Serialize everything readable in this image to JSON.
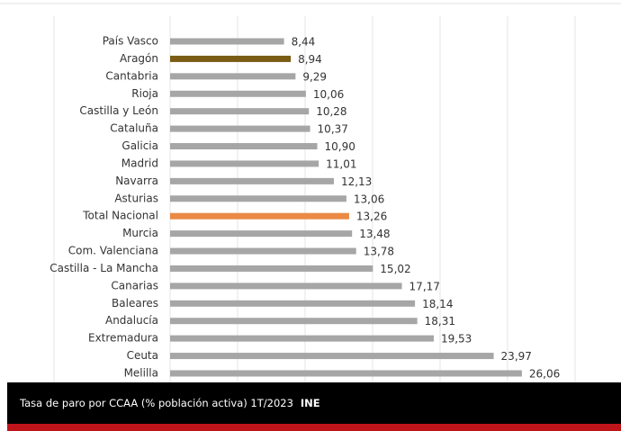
{
  "chart_data": {
    "type": "hbar",
    "title": "Tasa de paro por CCAA (% población activa) 1T/2023",
    "source": "INE",
    "categories": [
      "País Vasco",
      "Aragón",
      "Cantabria",
      "Rioja",
      "Castilla y León",
      "Cataluña",
      "Galicia",
      "Madrid",
      "Navarra",
      "Asturias",
      "Total Nacional",
      "Murcia",
      "Com. Valenciana",
      "Castilla - La Mancha",
      "Canarias",
      "Baleares",
      "Andalucía",
      "Extremadura",
      "Ceuta",
      "Melilla"
    ],
    "values": [
      8.44,
      8.94,
      9.29,
      10.06,
      10.28,
      10.37,
      10.9,
      11.01,
      12.13,
      13.06,
      13.26,
      13.48,
      13.78,
      15.02,
      17.17,
      18.14,
      18.31,
      19.53,
      23.97,
      26.06
    ],
    "value_labels": [
      "8,44",
      "8,94",
      "9,29",
      "10,06",
      "10,28",
      "10,37",
      "10,90",
      "11,01",
      "12,13",
      "13,06",
      "13,26",
      "13,48",
      "13,78",
      "15,02",
      "17,17",
      "18,14",
      "18,31",
      "19,53",
      "23,97",
      "26,06"
    ],
    "colors": [
      "#a6a6a6",
      "#7a5c14",
      "#a6a6a6",
      "#a6a6a6",
      "#a6a6a6",
      "#a6a6a6",
      "#a6a6a6",
      "#a6a6a6",
      "#a6a6a6",
      "#a6a6a6",
      "#ea8a45",
      "#a6a6a6",
      "#a6a6a6",
      "#a6a6a6",
      "#a6a6a6",
      "#a6a6a6",
      "#a6a6a6",
      "#a6a6a6",
      "#a6a6a6",
      "#a6a6a6"
    ],
    "xlim": [
      0,
      30
    ],
    "xticks": [
      0,
      5,
      10,
      15,
      20,
      25,
      30
    ],
    "grid": true
  }
}
